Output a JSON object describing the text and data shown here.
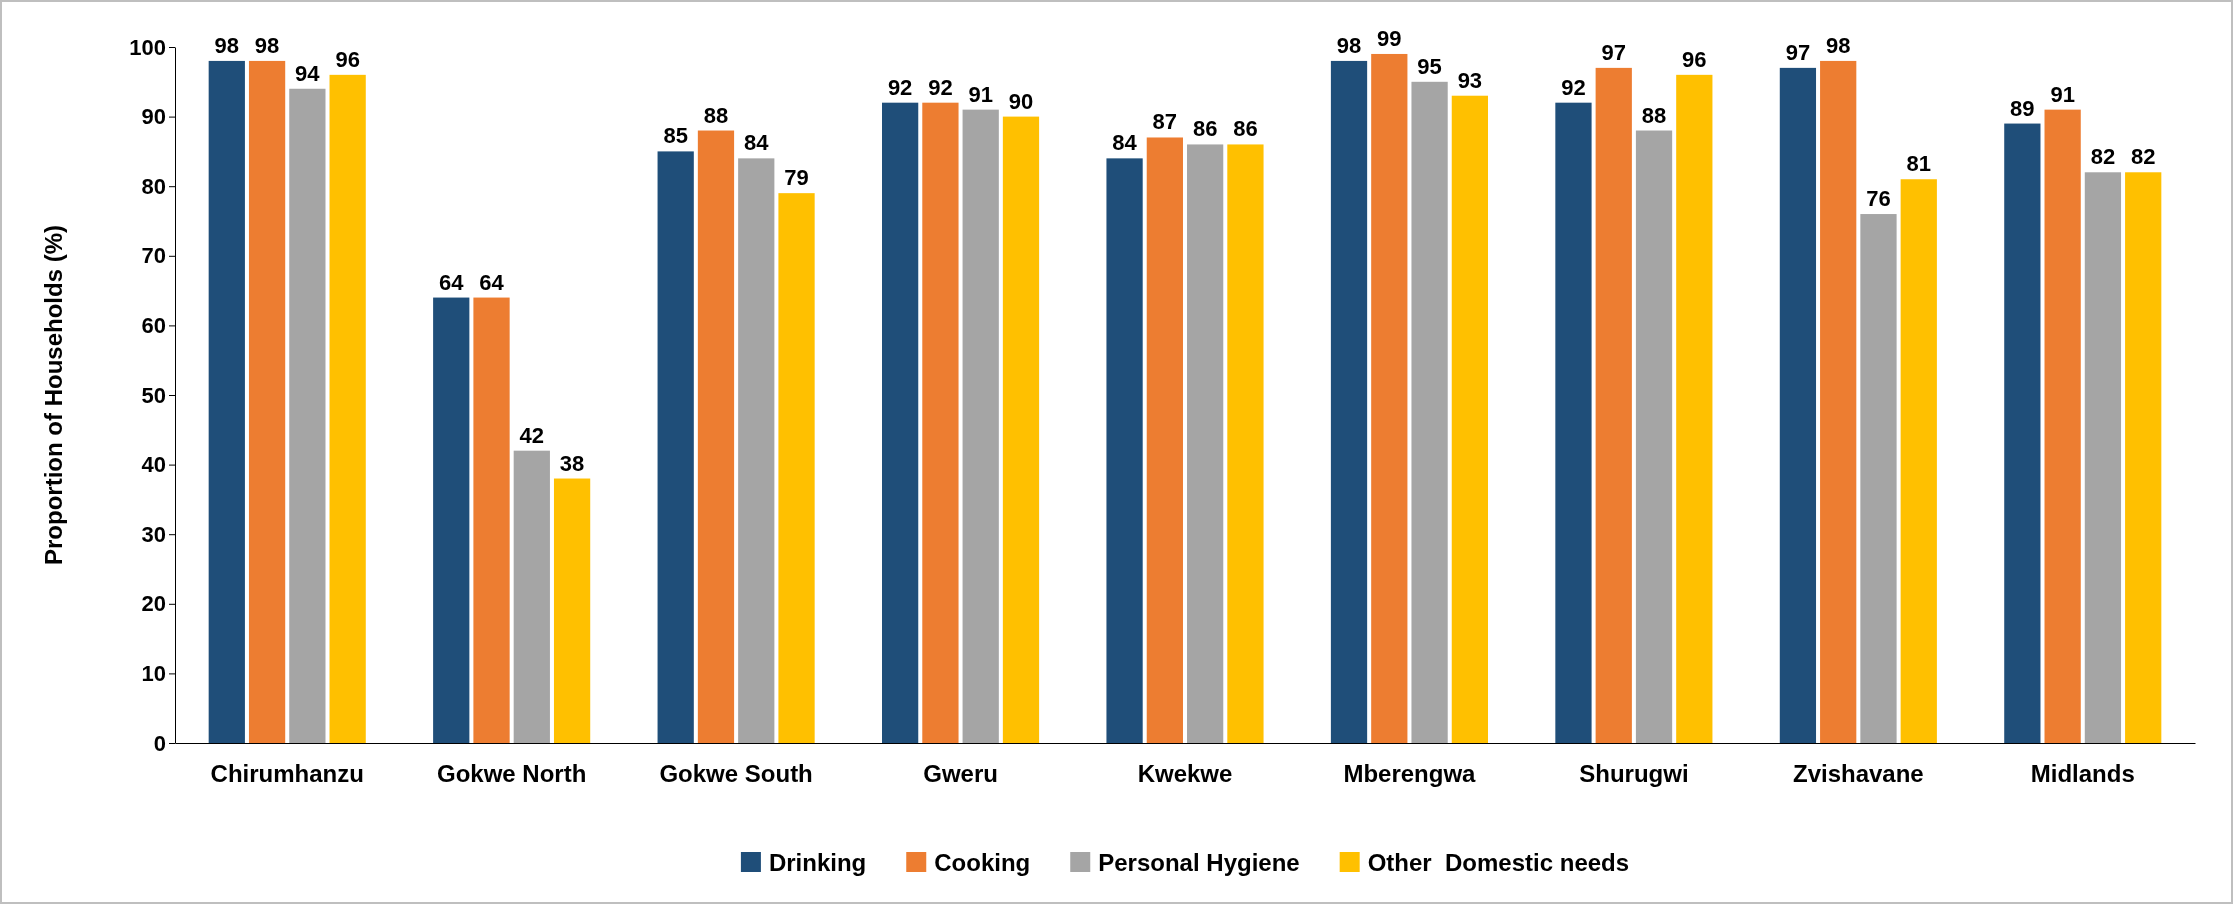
{
  "chart_data": {
    "type": "bar",
    "ylabel": "Proportion of Households (%)",
    "categories": [
      "Chirumhanzu",
      "Gokwe North",
      "Gokwe South",
      "Gweru",
      "Kwekwe",
      "Mberengwa",
      "Shurugwi",
      "Zvishavane",
      "Midlands"
    ],
    "series": [
      {
        "name": "Drinking",
        "color": "#1f4e79",
        "values": [
          98,
          64,
          85,
          92,
          84,
          98,
          92,
          97,
          89
        ]
      },
      {
        "name": "Cooking",
        "color": "#ed7d31",
        "values": [
          98,
          64,
          88,
          92,
          87,
          99,
          97,
          98,
          91
        ]
      },
      {
        "name": "Personal Hygiene",
        "color": "#a5a5a5",
        "values": [
          94,
          42,
          84,
          91,
          86,
          95,
          88,
          76,
          82
        ]
      },
      {
        "name": "Other  Domestic needs",
        "color": "#ffc000",
        "values": [
          96,
          38,
          79,
          90,
          86,
          93,
          96,
          81,
          82
        ]
      }
    ],
    "ylim": [
      0,
      100
    ],
    "yticks": [
      0,
      10,
      20,
      30,
      40,
      50,
      60,
      70,
      80,
      90,
      100
    ],
    "data_labels": true,
    "legend": "bottom",
    "grid": false
  }
}
